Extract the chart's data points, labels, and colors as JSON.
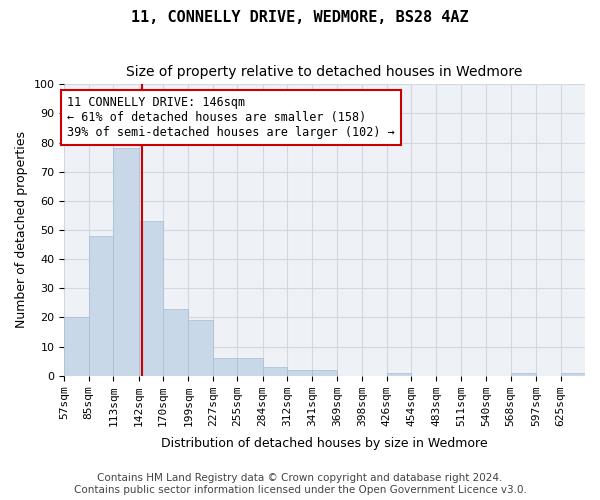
{
  "title": "11, CONNELLY DRIVE, WEDMORE, BS28 4AZ",
  "subtitle": "Size of property relative to detached houses in Wedmore",
  "xlabel": "Distribution of detached houses by size in Wedmore",
  "ylabel": "Number of detached properties",
  "bar_color": "#c8d8e8",
  "bar_edgecolor": "#aabcce",
  "grid_color": "#d0d8e0",
  "bg_color": "#eef2f7",
  "vline_x": 146,
  "vline_color": "#cc0000",
  "bin_edges": [
    57,
    85,
    113,
    142,
    170,
    199,
    227,
    255,
    284,
    312,
    341,
    369,
    398,
    426,
    454,
    483,
    511,
    540,
    568,
    597,
    625,
    653
  ],
  "bin_labels": [
    "57sqm",
    "85sqm",
    "113sqm",
    "142sqm",
    "170sqm",
    "199sqm",
    "227sqm",
    "255sqm",
    "284sqm",
    "312sqm",
    "341sqm",
    "369sqm",
    "398sqm",
    "426sqm",
    "454sqm",
    "483sqm",
    "511sqm",
    "540sqm",
    "568sqm",
    "597sqm",
    "625sqm"
  ],
  "bar_heights": [
    20,
    48,
    78,
    53,
    23,
    19,
    6,
    6,
    3,
    2,
    2,
    0,
    0,
    1,
    0,
    0,
    0,
    0,
    1,
    0,
    1
  ],
  "annotation_text": "11 CONNELLY DRIVE: 146sqm\n← 61% of detached houses are smaller (158)\n39% of semi-detached houses are larger (102) →",
  "annotation_box_color": "#ffffff",
  "annotation_box_edgecolor": "#cc0000",
  "ylim": [
    0,
    100
  ],
  "yticks": [
    0,
    10,
    20,
    30,
    40,
    50,
    60,
    70,
    80,
    90,
    100
  ],
  "footer_line1": "Contains HM Land Registry data © Crown copyright and database right 2024.",
  "footer_line2": "Contains public sector information licensed under the Open Government Licence v3.0.",
  "title_fontsize": 11,
  "subtitle_fontsize": 10,
  "axis_label_fontsize": 9,
  "tick_fontsize": 8,
  "annotation_fontsize": 8.5,
  "footer_fontsize": 7.5
}
